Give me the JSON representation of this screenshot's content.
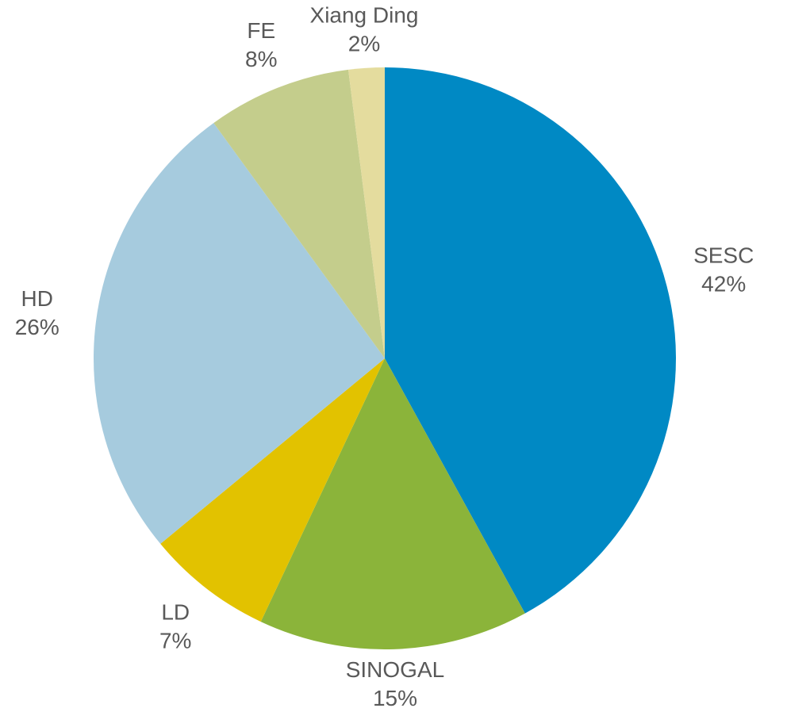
{
  "chart_data": {
    "type": "pie",
    "categories": [
      "SESC",
      "SINOGAL",
      "LD",
      "HD",
      "FE",
      "Xiang Ding"
    ],
    "values": [
      42,
      15,
      7,
      26,
      8,
      2
    ],
    "value_labels": [
      "42%",
      "15%",
      "7%",
      "26%",
      "8%",
      "2%"
    ],
    "colors": [
      "#0089c4",
      "#8bb43a",
      "#e2c200",
      "#a6cbde",
      "#c4cd8c",
      "#e4dc9e"
    ]
  }
}
